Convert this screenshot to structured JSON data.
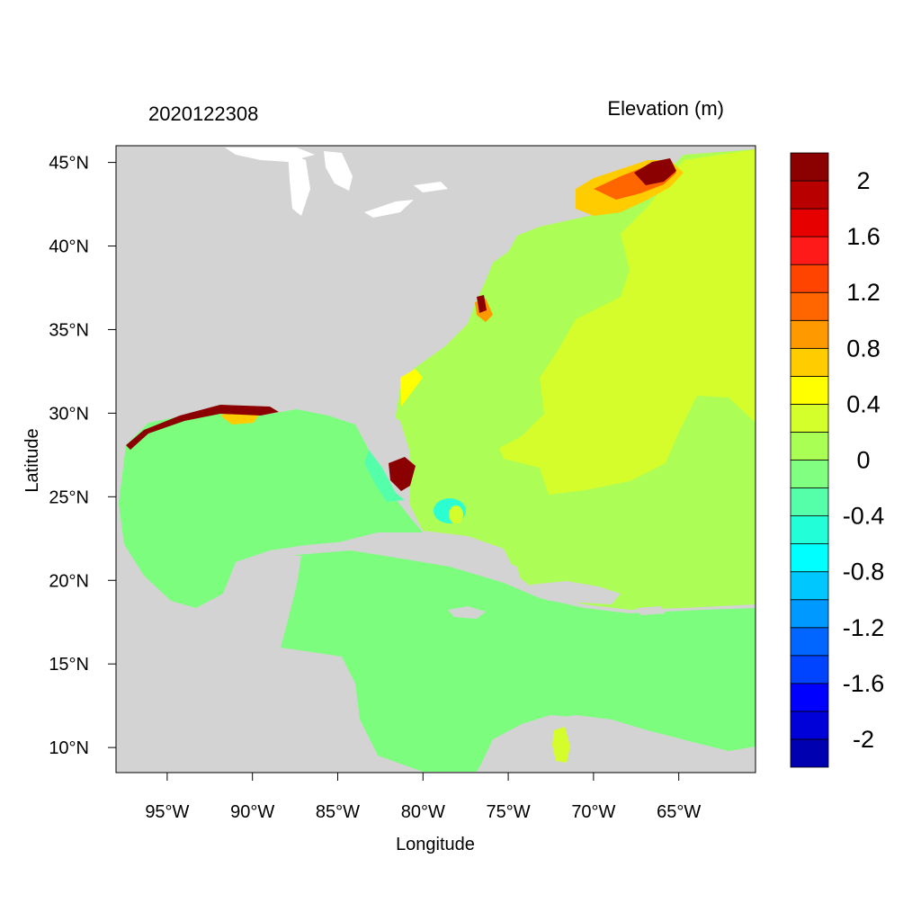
{
  "map": {
    "left_title": "2020122308",
    "right_title": "Elevation (m)",
    "x_axis_label": "Longitude",
    "y_axis_label": "Latitude",
    "lon_range": [
      -98.0,
      -60.5
    ],
    "lat_range": [
      8.5,
      46.0
    ],
    "x_ticks": [
      {
        "value": -95,
        "label": "95°W"
      },
      {
        "value": -90,
        "label": "90°W"
      },
      {
        "value": -85,
        "label": "85°W"
      },
      {
        "value": -80,
        "label": "80°W"
      },
      {
        "value": -75,
        "label": "75°W"
      },
      {
        "value": -70,
        "label": "70°W"
      },
      {
        "value": -65,
        "label": "65°W"
      }
    ],
    "y_ticks": [
      {
        "value": 10,
        "label": "10°N"
      },
      {
        "value": 15,
        "label": "15°N"
      },
      {
        "value": 20,
        "label": "20°N"
      },
      {
        "value": 25,
        "label": "25°N"
      },
      {
        "value": 30,
        "label": "30°N"
      },
      {
        "value": 35,
        "label": "35°N"
      },
      {
        "value": 40,
        "label": "40°N"
      },
      {
        "value": 45,
        "label": "45°N"
      }
    ],
    "colors": {
      "land": "#d3d3d3",
      "gulf_caribbean": "#7dfd7d",
      "atlantic_shelf": "#acfd55",
      "atlantic_deep": "#d4fd2b",
      "surge_high": "#8b0000"
    }
  },
  "colorbar": {
    "colors": [
      "#0000b0",
      "#0000d8",
      "#0000ff",
      "#0044ff",
      "#0066ff",
      "#0099ff",
      "#00c8ff",
      "#00ffff",
      "#22ffd8",
      "#55ffaa",
      "#80ff80",
      "#aaff55",
      "#d4ff2b",
      "#ffff00",
      "#ffcc00",
      "#ff9900",
      "#ff6600",
      "#ff4400",
      "#ff1a1a",
      "#e60000",
      "#b80000",
      "#8b0000"
    ],
    "labels": [
      {
        "text": "-2",
        "level": 1
      },
      {
        "text": "-1.6",
        "level": 3
      },
      {
        "text": "-1.2",
        "level": 5
      },
      {
        "text": "-0.8",
        "level": 7
      },
      {
        "text": "-0.4",
        "level": 9
      },
      {
        "text": "0",
        "level": 11
      },
      {
        "text": "0.4",
        "level": 13
      },
      {
        "text": "0.8",
        "level": 15
      },
      {
        "text": "1.2",
        "level": 17
      },
      {
        "text": "1.6",
        "level": 19
      },
      {
        "text": "2",
        "level": 21
      }
    ]
  }
}
